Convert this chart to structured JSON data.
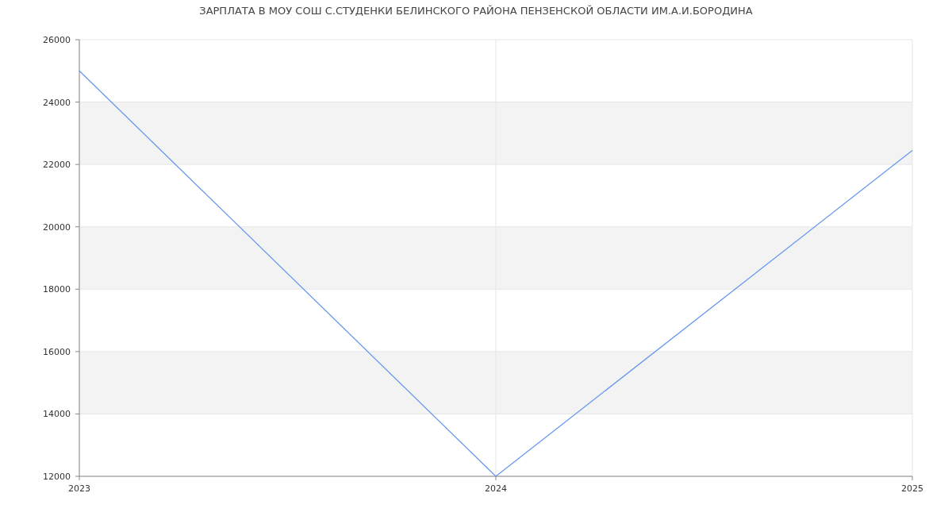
{
  "chart_data": {
    "type": "line",
    "title": "ЗАРПЛАТА В МОУ СОШ С.СТУДЕНКИ БЕЛИНСКОГО РАЙОНА ПЕНЗЕНСКОЙ ОБЛАСТИ ИМ.А.И.БОРОДИНА",
    "x": [
      2023,
      2024,
      2025
    ],
    "series": [
      {
        "color": "#6495ed",
        "values": [
          25000,
          12000,
          22450
        ]
      }
    ],
    "xlim": [
      2023,
      2025
    ],
    "xticks": [
      2023,
      2024,
      2025
    ],
    "ylim": [
      12000,
      26000
    ],
    "yticks": [
      12000,
      14000,
      16000,
      18000,
      20000,
      22000,
      24000,
      26000
    ],
    "grid": true,
    "marker": "none",
    "line_style": "solid"
  }
}
